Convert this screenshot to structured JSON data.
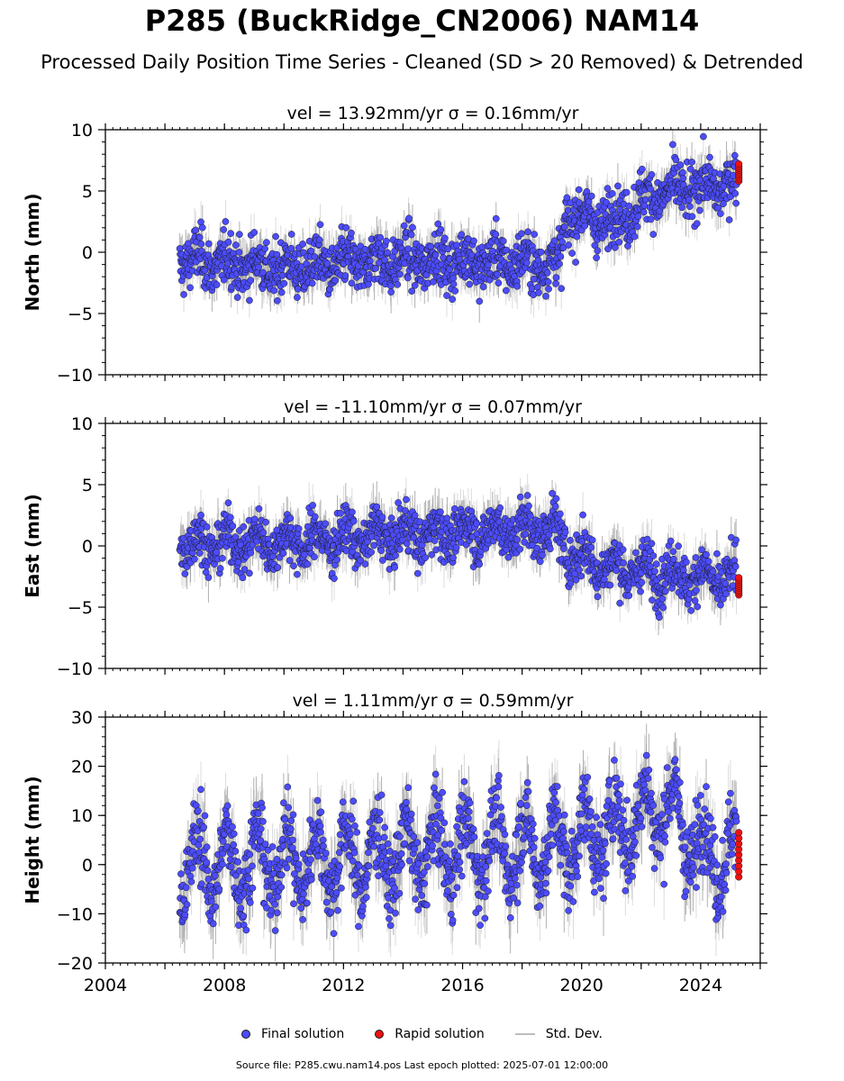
{
  "title": "P285 (BuckRidge_CN2006) NAM14",
  "subtitle": "Processed Daily Position Time Series - Cleaned (SD > 20 Removed) & Detrended",
  "legend": {
    "final": "Final solution",
    "rapid": "Rapid solution",
    "stddev": "Std. Dev."
  },
  "footer": "Source file: P285.cwu.nam14.pos  Last epoch plotted: 2025-07-01 12:00:00",
  "colors": {
    "final": "#4c4cff",
    "rapid": "#ee1111",
    "stddev": "#bdbdbd",
    "marker_edge": "#1a1a1a"
  },
  "chart_data": [
    {
      "type": "scatter",
      "title": "vel = 13.92mm/yr   σ = 0.16mm/yr",
      "ylabel": "North (mm)",
      "xlim": [
        2004,
        2026
      ],
      "ylim": [
        -10,
        10
      ],
      "yticks": [
        -10,
        -5,
        0,
        5,
        10
      ],
      "xticks": [
        2004,
        2008,
        2012,
        2016,
        2020,
        2024
      ],
      "show_xticklabels": false,
      "final_solution": {
        "x_start": 2006.5,
        "x_end": 2025.2,
        "trend": [
          [
            2006.5,
            -0.6
          ],
          [
            2010.0,
            -1.3
          ],
          [
            2014.0,
            -0.6
          ],
          [
            2019.3,
            -0.9
          ],
          [
            2019.45,
            3.0
          ],
          [
            2021.0,
            2.5
          ],
          [
            2022.5,
            4.8
          ],
          [
            2025.2,
            5.6
          ]
        ],
        "scatter_sd": 1.1,
        "annual_amp": 0.7,
        "stddev_half_height": 1.4
      },
      "rapid_solution": {
        "x": 2025.28,
        "y_range": [
          5.8,
          7.2
        ]
      }
    },
    {
      "type": "scatter",
      "title": "vel = -11.10mm/yr   σ = 0.07mm/yr",
      "ylabel": "East (mm)",
      "xlim": [
        2004,
        2026
      ],
      "ylim": [
        -10,
        10
      ],
      "yticks": [
        -10,
        -5,
        0,
        5,
        10
      ],
      "xticks": [
        2004,
        2008,
        2012,
        2016,
        2020,
        2024
      ],
      "show_xticklabels": false,
      "final_solution": {
        "x_start": 2006.5,
        "x_end": 2025.2,
        "trend": [
          [
            2006.5,
            0.2
          ],
          [
            2010.0,
            0.3
          ],
          [
            2014.0,
            0.9
          ],
          [
            2019.0,
            1.4
          ],
          [
            2019.6,
            -0.5
          ],
          [
            2021.0,
            -1.8
          ],
          [
            2023.0,
            -2.3
          ],
          [
            2025.2,
            -2.8
          ]
        ],
        "scatter_sd": 1.0,
        "annual_amp": 0.9,
        "stddev_half_height": 1.5
      },
      "rapid_solution": {
        "x": 2025.28,
        "y_range": [
          -4.0,
          -2.6
        ]
      }
    },
    {
      "type": "scatter",
      "title": "vel = 1.11mm/yr   σ = 0.59mm/yr",
      "ylabel": "Height (mm)",
      "xlim": [
        2004,
        2026
      ],
      "ylim": [
        -20,
        30
      ],
      "yticks": [
        -20,
        -10,
        0,
        10,
        20,
        30
      ],
      "xticks": [
        2004,
        2008,
        2012,
        2016,
        2020,
        2024
      ],
      "xticklabels": [
        "2004",
        "2008",
        "2012",
        "2016",
        "2020",
        "2024"
      ],
      "show_xticklabels": true,
      "final_solution": {
        "x_start": 2006.5,
        "x_end": 2025.2,
        "trend": [
          [
            2006.5,
            0.0
          ],
          [
            2012.0,
            1.0
          ],
          [
            2016.0,
            3.0
          ],
          [
            2019.0,
            3.5
          ],
          [
            2021.0,
            7.0
          ],
          [
            2022.8,
            12.0
          ],
          [
            2024.0,
            3.0
          ],
          [
            2025.2,
            1.5
          ]
        ],
        "scatter_sd": 4.0,
        "annual_amp": 6.5,
        "stddev_half_height": 5.5
      },
      "rapid_solution": {
        "x": 2025.28,
        "y_range": [
          -2.5,
          6.5
        ]
      }
    }
  ]
}
